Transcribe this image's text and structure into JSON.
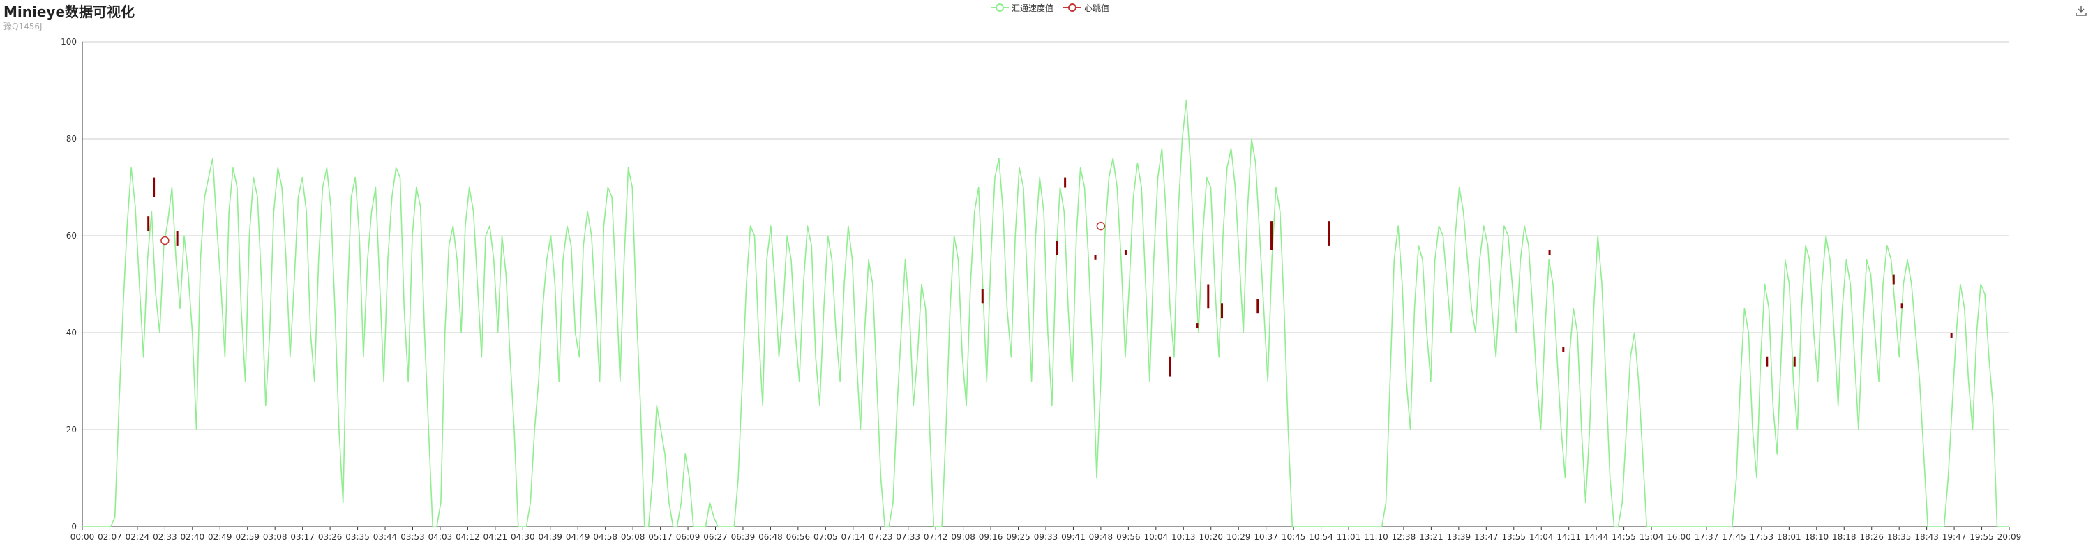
{
  "header": {
    "title": "Minieye数据可视化",
    "subtitle": "豫Q1456J"
  },
  "legend": {
    "items": [
      {
        "label": "汇通速度值",
        "color": "#90ee90",
        "icon": "circle-line-icon"
      },
      {
        "label": "心跳值",
        "color": "#c23531",
        "icon": "circle-line-icon"
      }
    ]
  },
  "toolbox": {
    "icon": "download-icon"
  },
  "colors": {
    "speed": "#90ee90",
    "heartbeat": "#8b0000",
    "heartbeat_marker": "#c23531",
    "grid": "#cccccc",
    "axis": "#333333"
  },
  "chart_data": {
    "type": "line",
    "title": "Minieye数据可视化",
    "subtitle": "豫Q1456J",
    "ylim": [
      0,
      100
    ],
    "yticks": [
      0,
      20,
      40,
      60,
      80,
      100
    ],
    "grid": true,
    "legend_position": "top-center",
    "x_labels": [
      "00:00",
      "02:07",
      "02:24",
      "02:33",
      "02:40",
      "02:49",
      "02:59",
      "03:08",
      "03:17",
      "03:26",
      "03:35",
      "03:44",
      "03:53",
      "04:03",
      "04:12",
      "04:21",
      "04:30",
      "04:39",
      "04:49",
      "04:58",
      "05:08",
      "05:17",
      "06:09",
      "06:27",
      "06:39",
      "06:48",
      "06:56",
      "07:05",
      "07:14",
      "07:23",
      "07:33",
      "07:42",
      "09:08",
      "09:16",
      "09:25",
      "09:33",
      "09:41",
      "09:48",
      "09:56",
      "10:04",
      "10:13",
      "10:20",
      "10:29",
      "10:37",
      "10:45",
      "10:54",
      "11:01",
      "11:10",
      "12:38",
      "13:21",
      "13:39",
      "13:47",
      "13:55",
      "14:04",
      "14:11",
      "14:44",
      "14:55",
      "15:04",
      "16:00",
      "17:37",
      "17:45",
      "17:53",
      "18:01",
      "18:10",
      "18:18",
      "18:26",
      "18:35",
      "18:43",
      "19:47",
      "19:55",
      "20:09"
    ],
    "series": [
      {
        "name": "汇通速度值",
        "type": "line",
        "color": "#90ee90",
        "values": [
          0,
          0,
          0,
          0,
          0,
          0,
          0,
          0,
          2,
          25,
          45,
          62,
          74,
          66,
          50,
          35,
          55,
          65,
          48,
          40,
          58,
          63,
          70,
          55,
          45,
          60,
          52,
          40,
          20,
          55,
          68,
          72,
          76,
          62,
          50,
          35,
          65,
          74,
          70,
          45,
          30,
          60,
          72,
          68,
          50,
          25,
          40,
          65,
          74,
          70,
          55,
          35,
          50,
          68,
          72,
          65,
          40,
          30,
          55,
          70,
          74,
          66,
          45,
          20,
          5,
          45,
          68,
          72,
          60,
          35,
          55,
          65,
          70,
          50,
          30,
          55,
          68,
          74,
          72,
          45,
          30,
          60,
          70,
          66,
          40,
          20,
          0,
          0,
          5,
          40,
          58,
          62,
          55,
          40,
          62,
          70,
          65,
          50,
          35,
          60,
          62,
          55,
          40,
          60,
          52,
          35,
          20,
          0,
          0,
          0,
          5,
          20,
          30,
          45,
          55,
          60,
          50,
          30,
          55,
          62,
          58,
          40,
          35,
          58,
          65,
          60,
          45,
          30,
          62,
          70,
          68,
          50,
          30,
          55,
          74,
          70,
          45,
          25,
          0,
          0,
          10,
          25,
          20,
          15,
          5,
          0,
          0,
          5,
          15,
          10,
          0,
          0,
          0,
          0,
          5,
          2,
          0,
          0,
          0,
          0,
          0,
          10,
          30,
          50,
          62,
          60,
          40,
          25,
          55,
          62,
          50,
          35,
          45,
          60,
          55,
          40,
          30,
          50,
          62,
          58,
          35,
          25,
          45,
          60,
          55,
          40,
          30,
          50,
          62,
          55,
          35,
          20,
          40,
          55,
          50,
          30,
          10,
          0,
          0,
          5,
          25,
          40,
          55,
          45,
          25,
          35,
          50,
          45,
          20,
          0,
          0,
          0,
          20,
          45,
          60,
          55,
          35,
          25,
          50,
          65,
          70,
          50,
          30,
          55,
          72,
          76,
          65,
          45,
          35,
          60,
          74,
          70,
          50,
          30,
          60,
          72,
          65,
          40,
          25,
          55,
          70,
          65,
          45,
          30,
          60,
          74,
          70,
          55,
          35,
          10,
          30,
          60,
          72,
          76,
          70,
          55,
          35,
          50,
          68,
          75,
          70,
          50,
          30,
          55,
          72,
          78,
          65,
          45,
          35,
          65,
          80,
          88,
          75,
          55,
          40,
          60,
          72,
          70,
          50,
          35,
          60,
          74,
          78,
          70,
          55,
          40,
          65,
          80,
          75,
          60,
          45,
          30,
          55,
          70,
          65,
          45,
          20,
          0,
          0,
          0,
          0,
          0,
          0,
          0,
          0,
          0,
          0,
          0,
          0,
          0,
          0,
          0,
          0,
          0,
          0,
          0,
          0,
          0,
          0,
          0,
          5,
          30,
          55,
          62,
          50,
          30,
          20,
          45,
          58,
          55,
          40,
          30,
          55,
          62,
          60,
          50,
          40,
          60,
          70,
          65,
          55,
          45,
          40,
          55,
          62,
          58,
          45,
          35,
          50,
          62,
          60,
          50,
          40,
          55,
          62,
          58,
          45,
          30,
          20,
          40,
          55,
          50,
          35,
          20,
          10,
          35,
          45,
          40,
          20,
          5,
          20,
          45,
          60,
          50,
          30,
          10,
          0,
          0,
          5,
          20,
          35,
          40,
          30,
          15,
          0,
          0,
          0,
          0,
          0,
          0,
          0,
          0,
          0,
          0,
          0,
          0,
          0,
          0,
          0,
          0,
          0,
          0,
          0,
          0,
          0,
          0,
          10,
          30,
          45,
          40,
          20,
          10,
          35,
          50,
          45,
          25,
          15,
          35,
          55,
          50,
          30,
          20,
          45,
          58,
          55,
          40,
          30,
          50,
          60,
          55,
          40,
          25,
          45,
          55,
          50,
          35,
          20,
          40,
          55,
          52,
          40,
          30,
          50,
          58,
          55,
          45,
          35,
          50,
          55,
          50,
          40,
          30,
          15,
          0,
          0,
          0,
          0,
          0,
          10,
          25,
          40,
          50,
          45,
          30,
          20,
          40,
          50,
          48,
          35,
          25,
          0,
          0,
          0,
          0
        ]
      },
      {
        "name": "心跳值",
        "type": "scatter",
        "color": "#c23531",
        "points": [
          {
            "x_index": 3,
            "value": 59
          },
          {
            "x_index": 37,
            "value": 62
          }
        ]
      }
    ],
    "annotations_bars": [
      {
        "x_index": 2.4,
        "low": 61,
        "high": 64
      },
      {
        "x_index": 2.6,
        "low": 68,
        "high": 72
      },
      {
        "x_index": 3.45,
        "low": 58,
        "high": 61
      },
      {
        "x_index": 32.7,
        "low": 46,
        "high": 49
      },
      {
        "x_index": 35.4,
        "low": 56,
        "high": 59
      },
      {
        "x_index": 35.7,
        "low": 70,
        "high": 72
      },
      {
        "x_index": 36.8,
        "low": 55,
        "high": 56
      },
      {
        "x_index": 37.9,
        "low": 56,
        "high": 57
      },
      {
        "x_index": 39.5,
        "low": 31,
        "high": 35
      },
      {
        "x_index": 40.5,
        "low": 41,
        "high": 42
      },
      {
        "x_index": 40.9,
        "low": 45,
        "high": 50
      },
      {
        "x_index": 41.4,
        "low": 43,
        "high": 46
      },
      {
        "x_index": 42.7,
        "low": 44,
        "high": 47
      },
      {
        "x_index": 43.2,
        "low": 57,
        "high": 63
      },
      {
        "x_index": 45.3,
        "low": 58,
        "high": 63
      },
      {
        "x_index": 53.3,
        "low": 56,
        "high": 57
      },
      {
        "x_index": 53.8,
        "low": 36,
        "high": 37
      },
      {
        "x_index": 61.2,
        "low": 33,
        "high": 35
      },
      {
        "x_index": 62.2,
        "low": 33,
        "high": 35
      },
      {
        "x_index": 65.8,
        "low": 50,
        "high": 52
      },
      {
        "x_index": 66.1,
        "low": 45,
        "high": 46
      },
      {
        "x_index": 67.9,
        "low": 39,
        "high": 40
      }
    ]
  }
}
